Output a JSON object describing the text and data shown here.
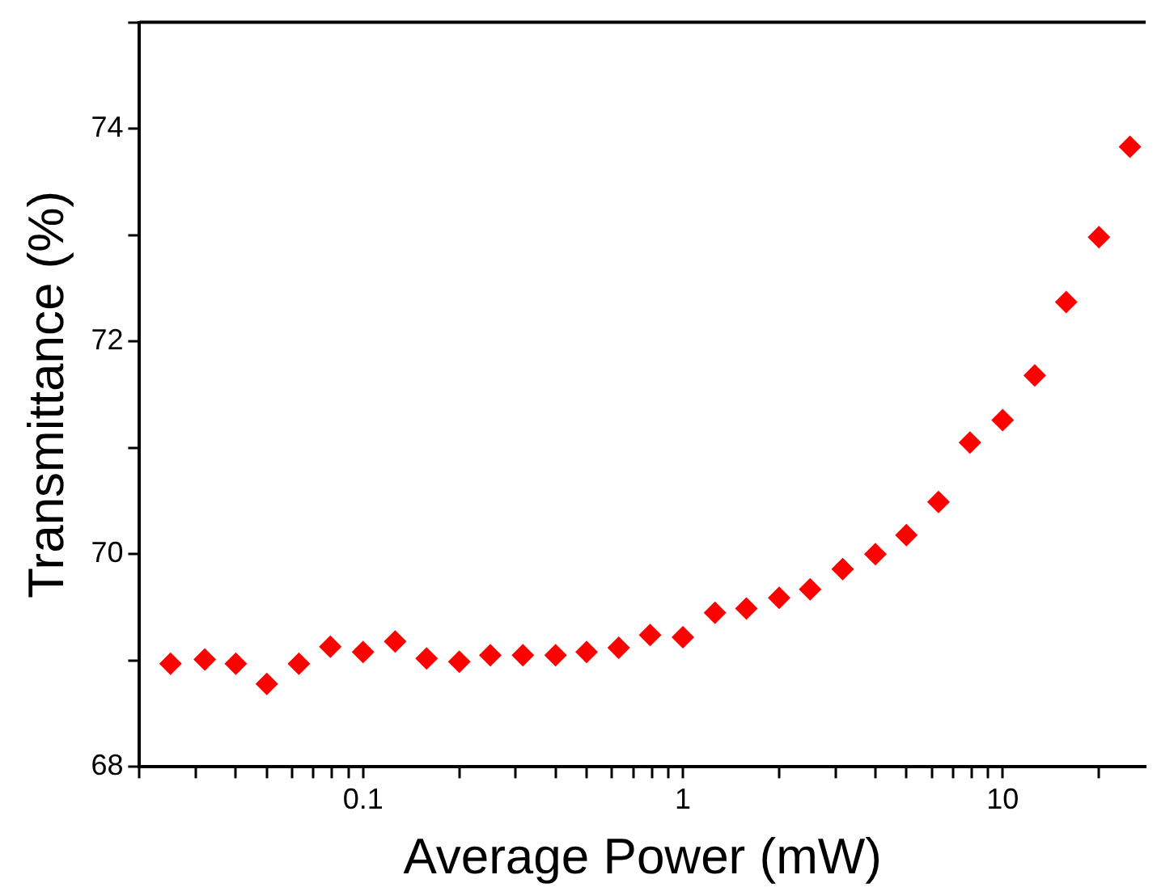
{
  "chart_data": {
    "type": "scatter",
    "xlabel": "Average Power (mW)",
    "ylabel": "Transmittance (%)",
    "log": "x",
    "marker": "diamond",
    "grid": false,
    "xlim": [
      0.02,
      28
    ],
    "ylim": [
      68,
      75
    ],
    "xticks": [
      {
        "value": 0.02,
        "label": null
      },
      {
        "value": 0.03,
        "label": null
      },
      {
        "value": 0.04,
        "label": null
      },
      {
        "value": 0.05,
        "label": null
      },
      {
        "value": 0.06,
        "label": null
      },
      {
        "value": 0.07,
        "label": null
      },
      {
        "value": 0.08,
        "label": null
      },
      {
        "value": 0.09,
        "label": null
      },
      0.1,
      {
        "value": 0.2,
        "label": null
      },
      {
        "value": 0.3,
        "label": null
      },
      {
        "value": 0.4,
        "label": null
      },
      {
        "value": 0.5,
        "label": null
      },
      {
        "value": 0.6,
        "label": null
      },
      {
        "value": 0.7,
        "label": null
      },
      {
        "value": 0.8,
        "label": null
      },
      {
        "value": 0.9,
        "label": null
      },
      1,
      {
        "value": 2,
        "label": null
      },
      {
        "value": 3,
        "label": null
      },
      {
        "value": 4,
        "label": null
      },
      {
        "value": 5,
        "label": null
      },
      {
        "value": 6,
        "label": null
      },
      {
        "value": 7,
        "label": null
      },
      {
        "value": 8,
        "label": null
      },
      {
        "value": 9,
        "label": null
      },
      10,
      {
        "value": 20,
        "label": null
      }
    ],
    "yticks": [
      68,
      {
        "value": 69,
        "label": null
      },
      70,
      {
        "value": 71,
        "label": null
      },
      72,
      {
        "value": 73,
        "label": null
      },
      74,
      {
        "value": 75,
        "label": null
      }
    ],
    "series": [
      {
        "color": "#ff0000",
        "x": [
          0.025,
          0.032,
          0.04,
          0.05,
          0.063,
          0.079,
          0.1,
          0.126,
          0.158,
          0.2,
          0.25,
          0.316,
          0.4,
          0.5,
          0.63,
          0.79,
          1,
          1.26,
          1.58,
          2,
          2.5,
          3.16,
          4,
          5,
          6.3,
          7.9,
          10,
          12.6,
          15.8,
          20,
          25
        ],
        "values": [
          68.97,
          69.01,
          68.97,
          68.78,
          68.97,
          69.13,
          69.08,
          69.18,
          69.02,
          68.99,
          69.05,
          69.05,
          69.05,
          69.08,
          69.12,
          69.24,
          69.22,
          69.45,
          69.49,
          69.59,
          69.67,
          69.86,
          70.0,
          70.18,
          70.49,
          71.05,
          71.26,
          71.68,
          72.37,
          72.98,
          73.83
        ]
      }
    ]
  }
}
